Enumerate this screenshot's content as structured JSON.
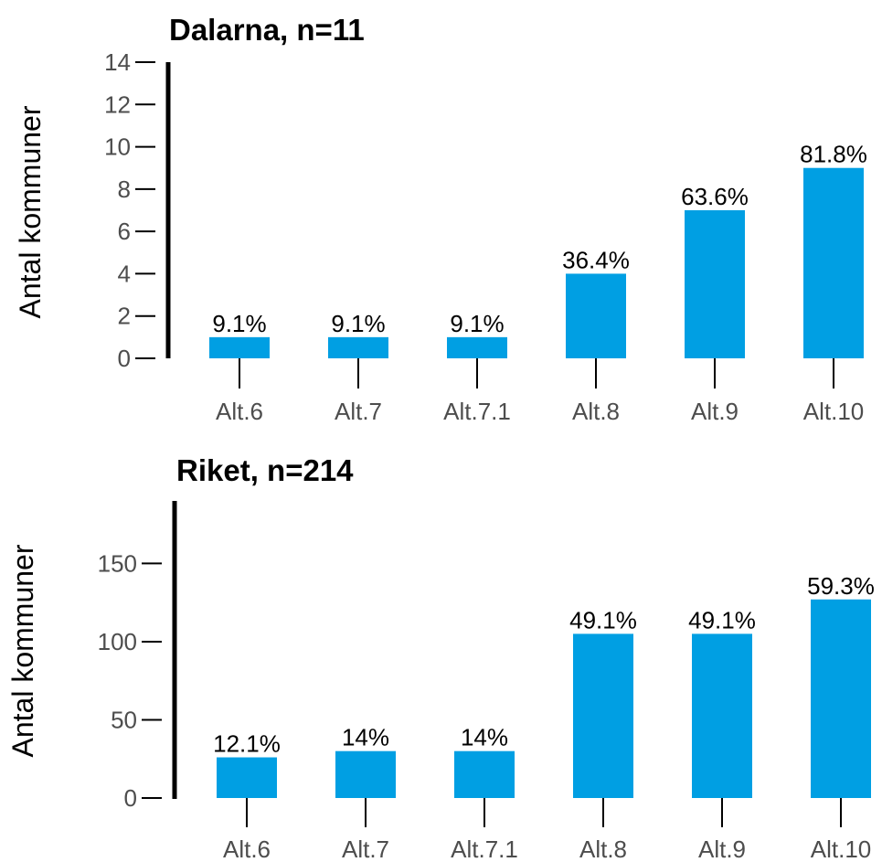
{
  "chart_data": [
    {
      "type": "bar",
      "title": "Dalarna, n=11",
      "ylabel": "Antal kommuner",
      "xlabel": "",
      "categories": [
        "Alt.6",
        "Alt.7",
        "Alt.7.1",
        "Alt.8",
        "Alt.9",
        "Alt.10"
      ],
      "values": [
        1,
        1,
        1,
        4,
        7,
        9
      ],
      "data_labels": [
        "9.1%",
        "9.1%",
        "9.1%",
        "36.4%",
        "63.6%",
        "81.8%"
      ],
      "yticks": [
        "0",
        "2",
        "4",
        "6",
        "8",
        "10",
        "12",
        "14"
      ],
      "ylim": [
        0,
        14
      ],
      "color": "#009FE3",
      "grid": false,
      "legend": "none"
    },
    {
      "type": "bar",
      "title": "Riket, n=214",
      "ylabel": "Antal kommuner",
      "xlabel": "",
      "categories": [
        "Alt.6",
        "Alt.7",
        "Alt.7.1",
        "Alt.8",
        "Alt.9",
        "Alt.10"
      ],
      "values": [
        26,
        30,
        30,
        105,
        105,
        127
      ],
      "data_labels": [
        "12.1%",
        "14%",
        "14%",
        "49.1%",
        "49.1%",
        "59.3%"
      ],
      "yticks": [
        "0",
        "50",
        "100",
        "150"
      ],
      "ylim": [
        0,
        190
      ],
      "color": "#009FE3",
      "grid": false,
      "legend": "none"
    }
  ]
}
